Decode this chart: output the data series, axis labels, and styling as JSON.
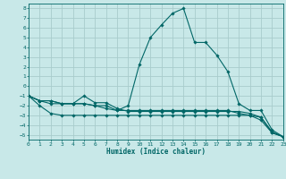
{
  "xlabel": "Humidex (Indice chaleur)",
  "background_color": "#c8e8e8",
  "grid_color": "#a8cccc",
  "line_color": "#006666",
  "xlim": [
    0,
    23
  ],
  "ylim": [
    -5.5,
    8.5
  ],
  "xticks": [
    0,
    1,
    2,
    3,
    4,
    5,
    6,
    7,
    8,
    9,
    10,
    11,
    12,
    13,
    14,
    15,
    16,
    17,
    18,
    19,
    20,
    21,
    22,
    23
  ],
  "yticks": [
    -5,
    -4,
    -3,
    -2,
    -1,
    0,
    1,
    2,
    3,
    4,
    5,
    6,
    7,
    8
  ],
  "series": [
    {
      "x": [
        0,
        1,
        2,
        3,
        4,
        5,
        6,
        7,
        8,
        9,
        10,
        11,
        12,
        13,
        14,
        15,
        16,
        17,
        18,
        19,
        20,
        21,
        22,
        23
      ],
      "y": [
        -1.0,
        -2.0,
        -2.8,
        -3.0,
        -3.0,
        -3.0,
        -3.0,
        -3.0,
        -3.0,
        -3.0,
        -3.0,
        -3.0,
        -3.0,
        -3.0,
        -3.0,
        -3.0,
        -3.0,
        -3.0,
        -3.0,
        -3.0,
        -3.0,
        -3.2,
        -4.7,
        -5.2
      ]
    },
    {
      "x": [
        0,
        1,
        2,
        3,
        4,
        5,
        6,
        7,
        8,
        9,
        10,
        11,
        12,
        13,
        14,
        15,
        16,
        17,
        18,
        19,
        20,
        21,
        22,
        23
      ],
      "y": [
        -1.0,
        -1.5,
        -1.5,
        -1.8,
        -1.8,
        -1.8,
        -2.0,
        -2.3,
        -2.5,
        -2.5,
        -2.5,
        -2.5,
        -2.5,
        -2.5,
        -2.5,
        -2.5,
        -2.5,
        -2.5,
        -2.5,
        -2.8,
        -3.0,
        -3.5,
        -4.8,
        -5.2
      ]
    },
    {
      "x": [
        0,
        1,
        2,
        3,
        4,
        5,
        6,
        7,
        8,
        9,
        10,
        11,
        12,
        13,
        14,
        15,
        16,
        17,
        18,
        19,
        20,
        21,
        22,
        23
      ],
      "y": [
        -1.0,
        -1.5,
        -1.8,
        -1.8,
        -1.8,
        -1.0,
        -1.7,
        -1.7,
        -2.3,
        -2.6,
        -2.6,
        -2.6,
        -2.6,
        -2.6,
        -2.6,
        -2.6,
        -2.6,
        -2.6,
        -2.6,
        -2.6,
        -2.8,
        -3.2,
        -4.8,
        -5.2
      ]
    },
    {
      "x": [
        0,
        1,
        2,
        3,
        4,
        5,
        6,
        7,
        8,
        9,
        10,
        11,
        12,
        13,
        14,
        15,
        16,
        17,
        18,
        19,
        20,
        21,
        22,
        23
      ],
      "y": [
        -1.0,
        -1.5,
        -1.5,
        -1.8,
        -1.8,
        -1.8,
        -2.0,
        -2.0,
        -2.5,
        -2.0,
        2.2,
        5.0,
        6.3,
        7.5,
        8.0,
        4.5,
        4.5,
        3.2,
        1.5,
        -1.8,
        -2.5,
        -2.5,
        -4.5,
        -5.2
      ]
    }
  ]
}
